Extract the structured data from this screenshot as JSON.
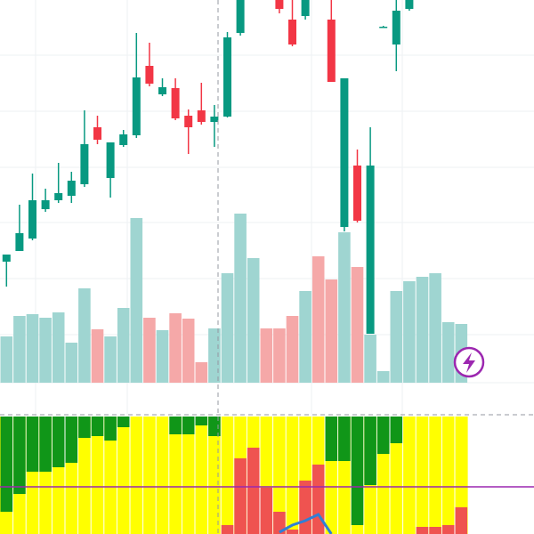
{
  "chart_data": [
    {
      "type": "candlestick",
      "ylim": [
        170,
        600
      ],
      "up_color": "#089981",
      "down_color": "#f23645",
      "open": [
        306,
        318,
        332,
        365,
        375,
        380,
        393,
        457,
        400,
        437,
        448,
        526,
        494,
        501,
        470,
        476,
        463,
        469,
        563,
        null,
        null,
        602,
        578,
        582,
        null,
        578,
        345,
        414,
        225,
        570,
        550,
        590,
        null,
        null,
        null,
        null
      ],
      "high": [
        314,
        370,
        405,
        388,
        417,
        407,
        476,
        470,
        440,
        454,
        563,
        552,
        512,
        512,
        477,
        507,
        482,
        564,
        620,
        null,
        null,
        615,
        605,
        610,
        null,
        610,
        512,
        432,
        457,
        571,
        605,
        615,
        null,
        null,
        null,
        null
      ],
      "low": [
        278,
        318,
        330,
        362,
        372,
        372,
        390,
        438,
        378,
        435,
        445,
        503,
        492,
        465,
        427,
        460,
        435,
        468,
        560,
        null,
        null,
        585,
        548,
        578,
        null,
        508,
        340,
        350,
        225,
        569,
        520,
        588,
        null,
        null,
        null,
        null
      ],
      "close": [
        314,
        338,
        375,
        375,
        383,
        397,
        438,
        443,
        440,
        449,
        513,
        506,
        502,
        467,
        457,
        463,
        469,
        558,
        605,
        null,
        null,
        590,
        550,
        605,
        null,
        508,
        512,
        352,
        414,
        570,
        588,
        605,
        null,
        null,
        null,
        null
      ],
      "volume_ylim": [
        0,
        430
      ],
      "volume": [
        52,
        75,
        77,
        73,
        79,
        45,
        106,
        60,
        52,
        84,
        185,
        73,
        59,
        78,
        72,
        23,
        61,
        123,
        190,
        140,
        61,
        61,
        75,
        103,
        142,
        116,
        169,
        130,
        54,
        13,
        103,
        114,
        119,
        123,
        68,
        66
      ],
      "volume_colors": [
        "#9fd5d1",
        "#9fd5d1",
        "#9fd5d1",
        "#9fd5d1",
        "#9fd5d1",
        "#9fd5d1",
        "#9fd5d1",
        "#f5a8a8",
        "#9fd5d1",
        "#9fd5d1",
        "#9fd5d1",
        "#f5a8a8",
        "#9fd5d1",
        "#f5a8a8",
        "#f5a8a8",
        "#f5a8a8",
        "#9fd5d1",
        "#9fd5d1",
        "#9fd5d1",
        "#9fd5d1",
        "#f5a8a8",
        "#f5a8a8",
        "#f5a8a8",
        "#9fd5d1",
        "#f5a8a8",
        "#f5a8a8",
        "#9fd5d1",
        "#f5a8a8",
        "#9fd5d1",
        "#9fd5d1",
        "#9fd5d1",
        "#9fd5d1",
        "#9fd5d1",
        "#9fd5d1",
        "#9fd5d1",
        "#9fd5d1"
      ]
    },
    {
      "type": "stacked_bar",
      "ylim": [
        0,
        132
      ],
      "background_color": "#ffff00",
      "series": [
        {
          "color": "#109618",
          "position": "top",
          "values": [
            107,
            87,
            62,
            62,
            57,
            52,
            24,
            22,
            27,
            12,
            0,
            0,
            0,
            20,
            20,
            10,
            22,
            0,
            0,
            0,
            0,
            0,
            0,
            0,
            0,
            50,
            50,
            122,
            77,
            42,
            30,
            0,
            0,
            0,
            0,
            0
          ]
        },
        {
          "color": "#ef5350",
          "position": "bottom",
          "values": [
            0,
            0,
            0,
            0,
            0,
            0,
            0,
            0,
            0,
            0,
            0,
            0,
            0,
            0,
            0,
            0,
            0,
            10,
            85,
            97,
            52,
            25,
            5,
            60,
            78,
            0,
            0,
            0,
            0,
            0,
            0,
            0,
            8,
            8,
            10,
            30
          ]
        }
      ],
      "line": {
        "color": "#2f7fd6",
        "values": [
          null,
          null,
          null,
          null,
          null,
          null,
          null,
          null,
          null,
          null,
          null,
          null,
          null,
          null,
          null,
          null,
          null,
          null,
          null,
          null,
          null,
          2,
          10,
          15,
          22,
          0,
          null,
          null,
          null,
          null,
          null,
          null,
          null,
          null,
          null,
          null
        ]
      },
      "level": 53,
      "level_color": "#9c27b0"
    }
  ]
}
